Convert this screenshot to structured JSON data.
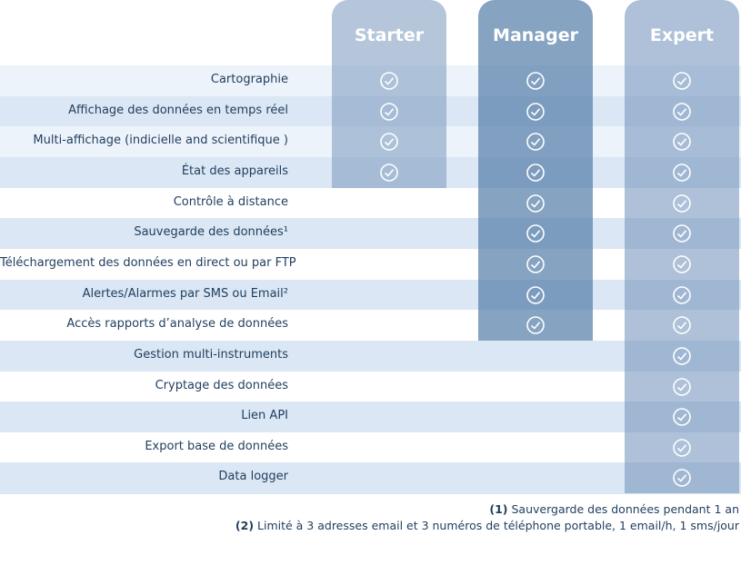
{
  "plans": [
    "Starter",
    "Manager",
    "Expert"
  ],
  "rows": [
    "Cartographie",
    "Affichage des données en temps réel",
    "Multi-affichage (indicielle and scientifique )",
    "État des appareils",
    "Contrôle à distance",
    "Sauvegarde des données¹",
    "Téléchargement des données en direct ou par FTP",
    "Alertes/Alarmes par SMS ou Email²",
    "Accès rapports d’analyse de données",
    "Gestion multi-instruments",
    "Cryptage des données",
    "Lien API",
    "Export base de données",
    "Data logger"
  ],
  "footnotes": [
    {
      "marker": "(1)",
      "text": "Sauvergarde des données pendant 1 an"
    },
    {
      "marker": "(2)",
      "text": "Limité à 3 adresses email et 3 numéros de téléphone portable, 1 email/h, 1 sms/jour"
    }
  ]
}
